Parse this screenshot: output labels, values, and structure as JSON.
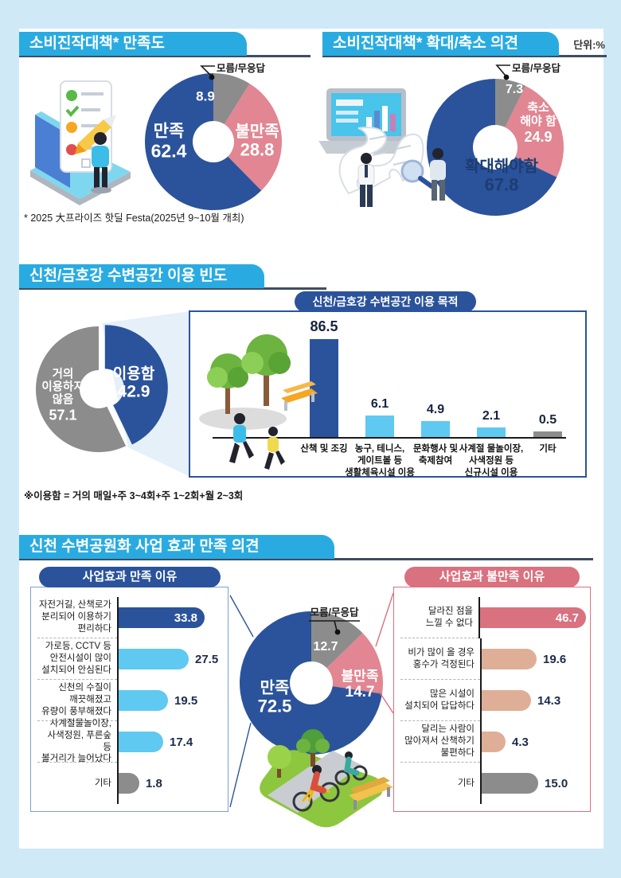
{
  "page": {
    "unit_label": "단위:%"
  },
  "colors": {
    "header_bar": "#29abe2",
    "underline": "#3e4e63",
    "navy": "#2b539b",
    "pink": "#e18692",
    "rose": "#d9717f",
    "tan": "#dfae97",
    "gray": "#8c8c8c",
    "cyan_bar": "#5fc9f1",
    "page_bg": "#cfe9f7"
  },
  "sections": {
    "s1_left": {
      "title": "소비진작대책* 만족도",
      "callout": "모름/무응답",
      "footnote": "* 2025 大프라이즈 핫딜 Festa(2025년 9~10월 개최)"
    },
    "s1_right": {
      "title": "소비진작대책* 확대/축소 의견",
      "callout": "모름/무응답"
    },
    "s2": {
      "title": "신천/금호강 수변공간 이용 빈도",
      "panel_title": "신천/금호강 수변공간 이용 목적",
      "footnote": "※이용함 = 거의 매일+주 3~4회+주 1~2회+월 2~3회"
    },
    "s3": {
      "title": "신천 수변공원화 사업 효과 만족 의견",
      "left_panel_title": "사업효과 만족 이유",
      "right_panel_title": "사업효과 불만족 이유",
      "callout": "모름/무응답"
    }
  },
  "chart_data": [
    {
      "id": "satisfaction_donut",
      "type": "pie",
      "title": "소비진작대책 만족도",
      "unit": "%",
      "slices": [
        {
          "label": "모름/무응답",
          "value": 8.9,
          "color": "#8c8c8c"
        },
        {
          "label": "불만족",
          "value": 28.8,
          "color": "#e18692"
        },
        {
          "label": "만족",
          "value": 62.4,
          "color": "#2b539b"
        }
      ]
    },
    {
      "id": "expand_reduce_donut",
      "type": "pie",
      "title": "소비진작대책 확대/축소 의견",
      "unit": "%",
      "slices": [
        {
          "label": "모름/무응답",
          "value": 7.3,
          "color": "#8c8c8c"
        },
        {
          "label": "축소\n해야 함",
          "value": 24.9,
          "color": "#e18692"
        },
        {
          "label": "확대해야함",
          "value": 67.8,
          "color": "#2b539b"
        }
      ]
    },
    {
      "id": "usage_donut",
      "type": "pie",
      "title": "신천/금호강 수변공간 이용 빈도",
      "unit": "%",
      "slices": [
        {
          "label": "이용함",
          "value": 42.9,
          "color": "#2b539b"
        },
        {
          "label": "거의\n이용하지\n않음",
          "value": 57.1,
          "color": "#8c8c8c"
        }
      ]
    },
    {
      "id": "usage_purpose_bar",
      "type": "bar",
      "title": "신천/금호강 수변공간 이용 목적",
      "unit": "%",
      "categories": [
        "산책 및 조깅",
        "농구, 테니스,\n게이트볼 등\n생활체육시설 이용",
        "문화행사 및\n축제참여",
        "사계절 물놀이장,\n사색정원 등\n신규시설 이용",
        "기타"
      ],
      "values": [
        86.5,
        6.1,
        4.9,
        2.1,
        0.5
      ],
      "bar_colors": [
        "#2b539b",
        "#5fc9f1",
        "#5fc9f1",
        "#5fc9f1",
        "#8c8c8c"
      ]
    },
    {
      "id": "project_donut",
      "type": "pie",
      "title": "신천 수변공원화 사업 효과 만족 의견",
      "unit": "%",
      "slices": [
        {
          "label": "모름/무응답",
          "value": 12.7,
          "color": "#8c8c8c"
        },
        {
          "label": "불만족",
          "value": 14.7,
          "color": "#e18692"
        },
        {
          "label": "만족",
          "value": 72.5,
          "color": "#2b539b"
        }
      ]
    },
    {
      "id": "satisfy_reasons_bar",
      "type": "bar",
      "title": "사업효과 만족 이유",
      "unit": "%",
      "categories": [
        "자전거길, 산책로가\n분리되어 이용하기\n편리하다",
        "가로등, CCTV 등\n안전시설이 많이\n설치되어 안심된다",
        "신천의 수질이\n깨끗해졌고\n유량이 풍부해졌다",
        "사계절물놀이장,\n사색정원, 푸른숲 등\n볼거리가 늘어났다",
        "기타"
      ],
      "values": [
        33.8,
        27.5,
        19.5,
        17.4,
        1.8
      ],
      "bar_colors": [
        "#2b539b",
        "#5fc9f1",
        "#5fc9f1",
        "#5fc9f1",
        "#8c8c8c"
      ]
    },
    {
      "id": "dissatisfy_reasons_bar",
      "type": "bar",
      "title": "사업효과 불만족 이유",
      "unit": "%",
      "categories": [
        "달라진 점을\n느낄 수 없다",
        "비가 많이 올 경우\n홍수가 걱정된다",
        "많은 시설이\n설치되어 답답하다",
        "달리는 사람이\n많아져서 산책하기\n불편하다",
        "기타"
      ],
      "values": [
        46.7,
        19.6,
        14.3,
        4.3,
        15.0
      ],
      "bar_colors": [
        "#d9717f",
        "#dfae97",
        "#dfae97",
        "#dfae97",
        "#8c8c8c"
      ]
    }
  ]
}
